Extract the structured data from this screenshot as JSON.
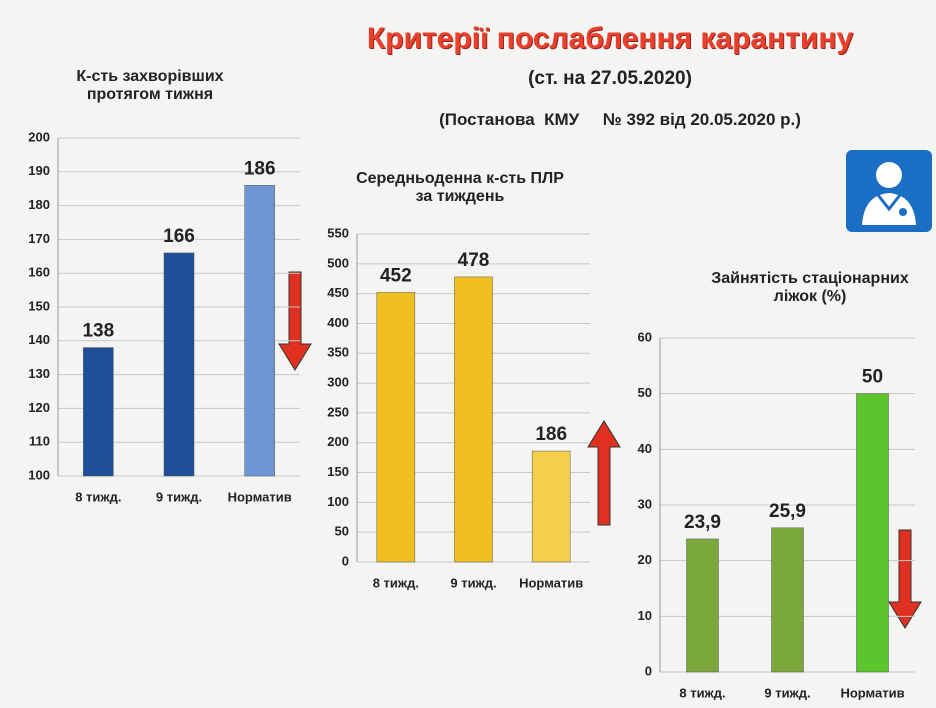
{
  "header": {
    "title": "Критерії послаблення карантину",
    "date": "(ст. на 27.05.2020)",
    "decree": "(Постанова  КМУ     № 392 від 20.05.2020 р.)"
  },
  "chart_data": [
    {
      "type": "bar",
      "title": "К-сть захворівших протягом тижня",
      "categories": [
        "8 тижд.",
        "9 тижд.",
        "Норматив"
      ],
      "values": [
        138,
        166,
        186
      ],
      "colors": [
        "#1f4e9a",
        "#1f4e9a",
        "#6f95d4"
      ],
      "ylim": [
        100,
        200
      ],
      "yticks": [
        100,
        110,
        120,
        130,
        140,
        150,
        160,
        170,
        180,
        190,
        200
      ],
      "grid": true
    },
    {
      "type": "bar",
      "title": "Середньоденна  к-сть ПЛР за тиждень",
      "categories": [
        "8 тижд.",
        "9 тижд.",
        "Норматив"
      ],
      "values": [
        452,
        478,
        186
      ],
      "colors": [
        "#f0c020",
        "#f0c020",
        "#f3cf4a"
      ],
      "ylim": [
        0,
        550
      ],
      "yticks": [
        0,
        50,
        100,
        150,
        200,
        250,
        300,
        350,
        400,
        450,
        500,
        550
      ],
      "grid": true
    },
    {
      "type": "bar",
      "title": "Зайнятість стаціонарних ліжок (%)",
      "categories": [
        "8 тижд.",
        "9 тижд.",
        "Норматив"
      ],
      "values": [
        23.9,
        25.9,
        50
      ],
      "value_labels": [
        "23,9",
        "25,9",
        "50"
      ],
      "colors": [
        "#7aa83a",
        "#7aa83a",
        "#5cc42c"
      ],
      "ylim": [
        0,
        60
      ],
      "yticks": [
        0,
        10,
        20,
        30,
        40,
        50,
        60
      ],
      "grid": true
    }
  ]
}
